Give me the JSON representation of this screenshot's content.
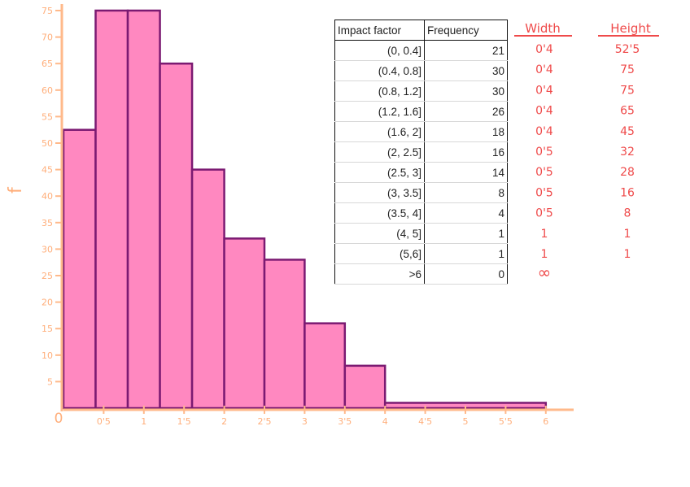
{
  "chart_data": {
    "type": "bar",
    "subtype": "histogram",
    "ylabel": "f",
    "xlim": [
      0,
      6.3
    ],
    "ylim": [
      0,
      75
    ],
    "x_ticks": [
      {
        "value": 0,
        "label": "0"
      },
      {
        "value": 0.5,
        "label": "0'5"
      },
      {
        "value": 1,
        "label": "1"
      },
      {
        "value": 1.5,
        "label": "1'5"
      },
      {
        "value": 2,
        "label": "2"
      },
      {
        "value": 2.5,
        "label": "2'5"
      },
      {
        "value": 3,
        "label": "3"
      },
      {
        "value": 3.5,
        "label": "3'5"
      },
      {
        "value": 4,
        "label": "4"
      },
      {
        "value": 4.5,
        "label": "4'5"
      },
      {
        "value": 5,
        "label": "5"
      },
      {
        "value": 5.5,
        "label": "5'5"
      },
      {
        "value": 6,
        "label": "6"
      }
    ],
    "y_ticks": [
      5,
      10,
      15,
      20,
      25,
      30,
      35,
      40,
      45,
      50,
      55,
      60,
      65,
      70,
      75
    ],
    "bins": [
      {
        "from": 0,
        "to": 0.4,
        "height": 52.5
      },
      {
        "from": 0.4,
        "to": 0.8,
        "height": 75
      },
      {
        "from": 0.8,
        "to": 1.2,
        "height": 75
      },
      {
        "from": 1.2,
        "to": 1.6,
        "height": 65
      },
      {
        "from": 1.6,
        "to": 2,
        "height": 45
      },
      {
        "from": 2,
        "to": 2.5,
        "height": 32
      },
      {
        "from": 2.5,
        "to": 3,
        "height": 28
      },
      {
        "from": 3,
        "to": 3.5,
        "height": 16
      },
      {
        "from": 3.5,
        "to": 4,
        "height": 8
      },
      {
        "from": 4,
        "to": 6,
        "height": 1
      }
    ],
    "colors": {
      "fill": "#ff88c0",
      "outline": "#7b1a72",
      "axis": "#ffb98a",
      "handwriting": "#ef4a4a"
    }
  },
  "table": {
    "headers": [
      "Impact factor",
      "Frequency"
    ],
    "rows": [
      [
        "(0, 0.4]",
        "21"
      ],
      [
        "(0.4, 0.8]",
        "30"
      ],
      [
        "(0.8, 1.2]",
        "30"
      ],
      [
        "(1.2, 1.6]",
        "26"
      ],
      [
        "(1.6, 2]",
        "18"
      ],
      [
        "(2, 2.5]",
        "16"
      ],
      [
        "(2.5, 3]",
        "14"
      ],
      [
        "(3, 3.5]",
        "8"
      ],
      [
        "(3.5, 4]",
        "4"
      ],
      [
        "(4, 5]",
        "1"
      ],
      [
        "(5,6]",
        "1"
      ],
      [
        ">6",
        "0"
      ]
    ]
  },
  "notes": {
    "width_header": "Width",
    "height_header": "Height",
    "widths": [
      "0'4",
      "0'4",
      "0'4",
      "0'4",
      "0'4",
      "0'5",
      "0'5",
      "0'5",
      "0'5",
      "1",
      "1",
      "∞"
    ],
    "heights": [
      "52'5",
      "75",
      "75",
      "65",
      "45",
      "32",
      "28",
      "16",
      "8",
      "1",
      "1",
      ""
    ]
  }
}
